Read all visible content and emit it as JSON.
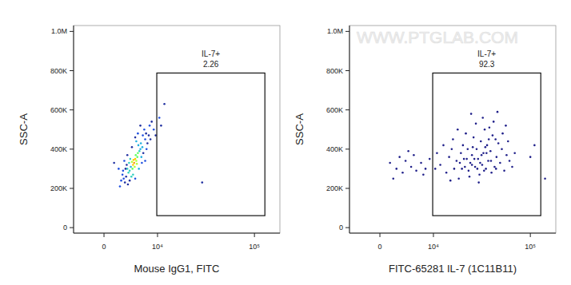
{
  "chart_data": [
    {
      "type": "scatter",
      "x_label": "Mouse IgG1, FITC",
      "y_label": "SSC-A",
      "xlim": [
        -4850,
        179000
      ],
      "ylim": [
        -28000,
        1030000
      ],
      "xticks": [
        0,
        {
          "value": 10000,
          "label": "10⁴"
        },
        {
          "value": 100000,
          "label": "10⁵"
        }
      ],
      "yticks": [
        0,
        {
          "value": 200000,
          "label": "200K"
        },
        {
          "value": 400000,
          "label": "400K"
        },
        {
          "value": 600000,
          "label": "600K"
        },
        {
          "value": 800000,
          "label": "800K"
        },
        {
          "value": 1000000,
          "label": "1.0M"
        }
      ],
      "gate": {
        "label": "IL-7+",
        "value": 2.26,
        "x": [
          9800,
          127000
        ],
        "y": [
          61000,
          788000
        ]
      },
      "x": [
        4800,
        5000,
        5200,
        4600,
        5400,
        4900,
        5100,
        4700,
        5300,
        4500,
        5500,
        4400,
        4000,
        4200,
        5800,
        6000,
        3800,
        6200,
        4300,
        5600,
        3600,
        6400,
        4100,
        5700,
        3900,
        6100,
        4600,
        5200,
        3000,
        3200,
        2800,
        3400,
        2600,
        3500,
        7000,
        7200,
        6800,
        7500,
        8000,
        7800,
        6500,
        3300,
        2900,
        4000,
        5000,
        6600,
        7300,
        8500,
        9000,
        6000,
        5500,
        3700,
        2400,
        4400,
        3100,
        8200,
        7000,
        9500,
        10500,
        11000,
        2200,
        5000,
        6300,
        3600,
        12000,
        30000,
        1500
      ],
      "y": [
        330000,
        350000,
        340000,
        320000,
        360000,
        310000,
        370000,
        345000,
        325000,
        300000,
        380000,
        335000,
        290000,
        310000,
        390000,
        400000,
        280000,
        360000,
        260000,
        420000,
        300000,
        410000,
        350000,
        300000,
        330000,
        430000,
        270000,
        440000,
        250000,
        230000,
        270000,
        260000,
        240000,
        320000,
        450000,
        480000,
        500000,
        430000,
        520000,
        470000,
        470000,
        300000,
        290000,
        240000,
        250000,
        380000,
        400000,
        540000,
        500000,
        520000,
        480000,
        220000,
        210000,
        410000,
        340000,
        450000,
        340000,
        470000,
        560000,
        520000,
        300000,
        460000,
        330000,
        370000,
        630000,
        230000,
        330000
      ],
      "colors": [
        "#ff9900",
        "#ffcc00",
        "#b0ff30",
        "#ffcc00",
        "#60ff60",
        "#b0ff30",
        "#60ff60",
        "#ffcc00",
        "#b0ff30",
        "#60ff60",
        "#60ff60",
        "#b0ff30",
        "#30d0c0",
        "#20b0e0",
        "#30d0c0",
        "#20b0e0",
        "#30d0c0",
        "#20b0e0",
        "#30d0c0",
        "#20b0e0",
        "#30d0c0",
        "#20b0e0",
        "#30d0c0",
        "#20b0e0",
        "#30d0c0",
        "#20b0e0",
        "#30d0c0",
        "#20b0e0",
        "#2050e0",
        "#2030a0",
        "#2050e0",
        "#2030a0",
        "#2050e0",
        "#2030a0",
        "#2050e0",
        "#2030a0",
        "#2050e0",
        "#2030a0",
        "#2050e0",
        "#2030a0",
        "#2050e0",
        "#2030a0",
        "#2050e0",
        "#2030a0",
        "#2050e0",
        "#2030a0",
        "#2050e0",
        "#2030a0",
        "#2050e0",
        "#2030a0",
        "#2050e0",
        "#2030a0",
        "#2050e0",
        "#2030a0",
        "#2050e0",
        "#2030a0",
        "#2050e0",
        "#2030a0",
        "#2050e0",
        "#2030a0",
        "#2050e0",
        "#2030a0",
        "#2050e0",
        "#2030a0",
        "#2030a0",
        "#2030a0",
        "#2030a0"
      ]
    },
    {
      "type": "scatter",
      "x_label": "FITC-65281 IL-7 (1C11B11)",
      "y_label": "SSC-A",
      "watermark": "WWW.PTGLAB.COM",
      "xlim": [
        -4850,
        179000
      ],
      "ylim": [
        -28000,
        1030000
      ],
      "xticks": [
        0,
        {
          "value": 10000,
          "label": "10⁴"
        },
        {
          "value": 100000,
          "label": "10⁵"
        }
      ],
      "yticks": [
        0,
        {
          "value": 200000,
          "label": "200K"
        },
        {
          "value": 400000,
          "label": "400K"
        },
        {
          "value": 600000,
          "label": "600K"
        },
        {
          "value": 800000,
          "label": "800K"
        },
        {
          "value": 1000000,
          "label": "1.0M"
        }
      ],
      "gate": {
        "label": "IL-7+",
        "value": 92.3,
        "x": [
          9800,
          127000
        ],
        "y": [
          61000,
          788000
        ]
      },
      "color": "#20208a",
      "x": [
        1500,
        2500,
        3000,
        3500,
        4000,
        5000,
        5500,
        6000,
        7000,
        8000,
        9000,
        2000,
        4500,
        7500,
        12000,
        14000,
        15000,
        16000,
        17000,
        18000,
        19000,
        20000,
        21000,
        22000,
        23000,
        24000,
        25000,
        26000,
        27000,
        28000,
        29000,
        30000,
        31000,
        32000,
        33000,
        34000,
        35000,
        36000,
        37000,
        38000,
        40000,
        42000,
        44000,
        46000,
        48000,
        50000,
        52000,
        55000,
        58000,
        62000,
        66000,
        70000,
        13000,
        16500,
        19500,
        22500,
        24500,
        26500,
        28500,
        30500,
        33500,
        36500,
        39000,
        41000,
        43000,
        45000,
        47000,
        53000,
        57000,
        60000,
        20500,
        23500,
        27500,
        31500,
        34500,
        38500,
        18500,
        15500,
        25500,
        29500,
        32500,
        21500,
        26000,
        35500,
        40500,
        45500,
        11000,
        10500,
        100000,
        140000,
        110000
      ],
      "y": [
        330000,
        300000,
        360000,
        280000,
        340000,
        310000,
        370000,
        290000,
        330000,
        300000,
        350000,
        250000,
        390000,
        270000,
        320000,
        280000,
        360000,
        400000,
        300000,
        340000,
        250000,
        380000,
        420000,
        310000,
        350000,
        290000,
        330000,
        370000,
        460000,
        310000,
        400000,
        350000,
        270000,
        440000,
        320000,
        380000,
        500000,
        300000,
        420000,
        340000,
        390000,
        470000,
        310000,
        360000,
        430000,
        330000,
        400000,
        290000,
        370000,
        340000,
        310000,
        380000,
        420000,
        450000,
        330000,
        480000,
        260000,
        410000,
        530000,
        230000,
        560000,
        380000,
        510000,
        280000,
        540000,
        450000,
        590000,
        480000,
        520000,
        440000,
        300000,
        400000,
        350000,
        330000,
        290000,
        450000,
        500000,
        240000,
        580000,
        300000,
        370000,
        350000,
        320000,
        410000,
        340000,
        300000,
        380000,
        300000,
        360000,
        250000,
        420000
      ]
    }
  ]
}
